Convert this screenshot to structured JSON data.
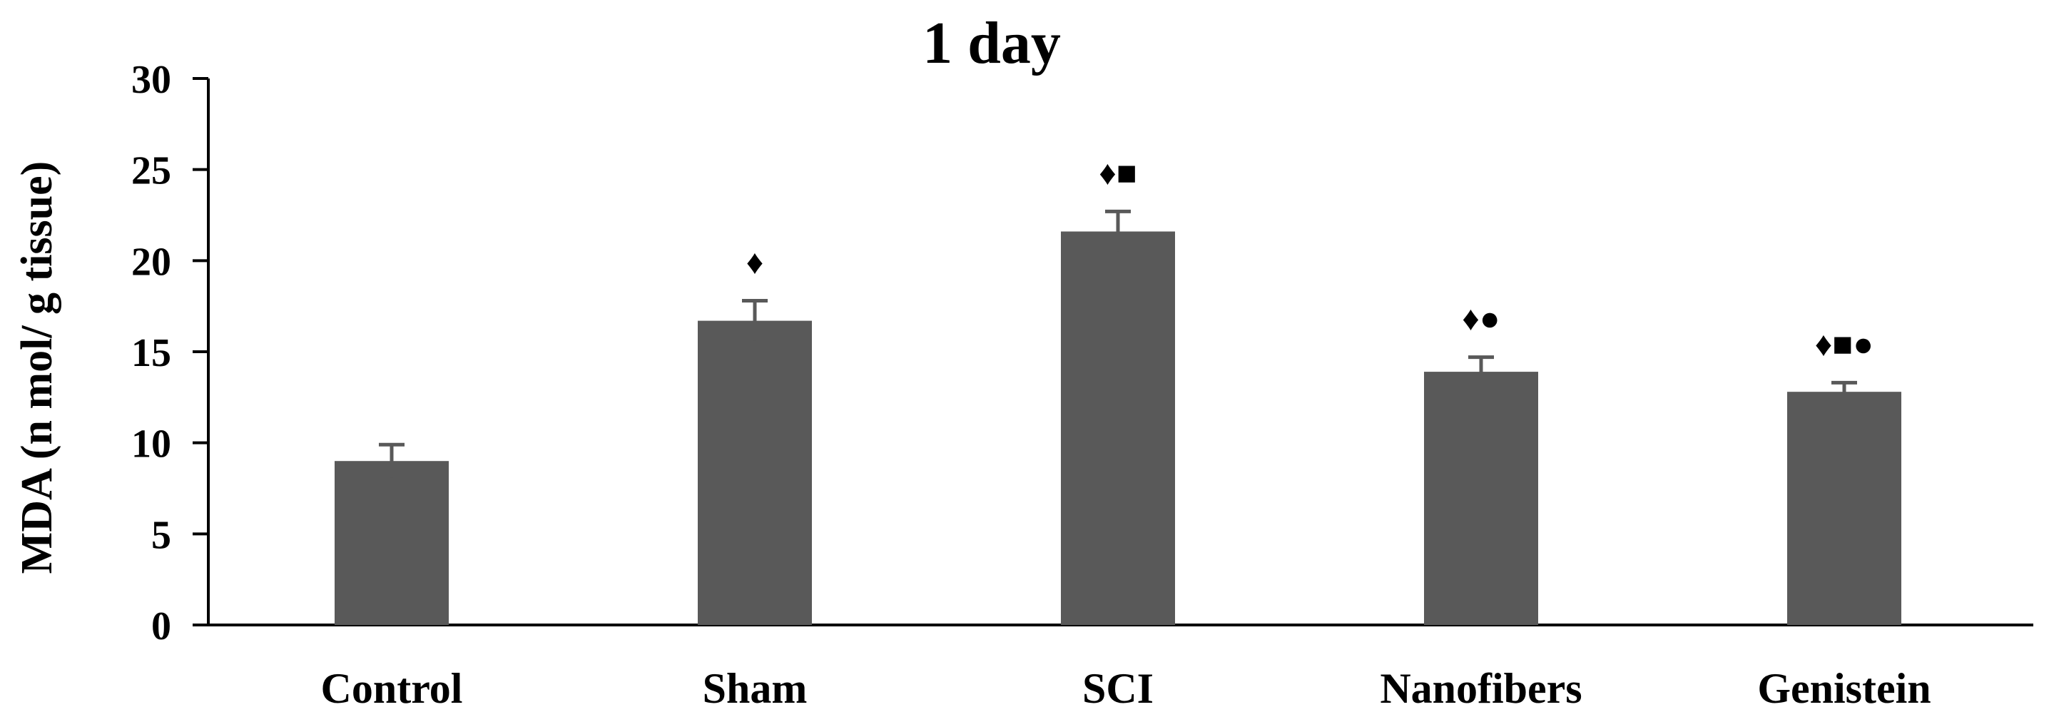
{
  "chart_data": {
    "type": "bar",
    "title": "1 day",
    "ylabel": "MDA (n mol/ g tissue)",
    "xlabel": "",
    "categories": [
      "Control",
      "Sham",
      "SCI",
      "Nanofibers",
      "Genistein"
    ],
    "values": [
      9.0,
      16.7,
      21.6,
      13.9,
      12.8
    ],
    "errors": [
      0.9,
      1.1,
      1.1,
      0.8,
      0.5
    ],
    "annotations": [
      "",
      "♦",
      "♦■",
      "♦●",
      "♦■●"
    ],
    "ylim": [
      0,
      30
    ],
    "yticks": [
      0,
      5,
      10,
      15,
      20,
      25,
      30
    ],
    "grid": false,
    "legend": "none",
    "colors": {
      "bar": "#595959",
      "error_bar": "#595959",
      "axis": "#000000",
      "text": "#000000"
    }
  }
}
